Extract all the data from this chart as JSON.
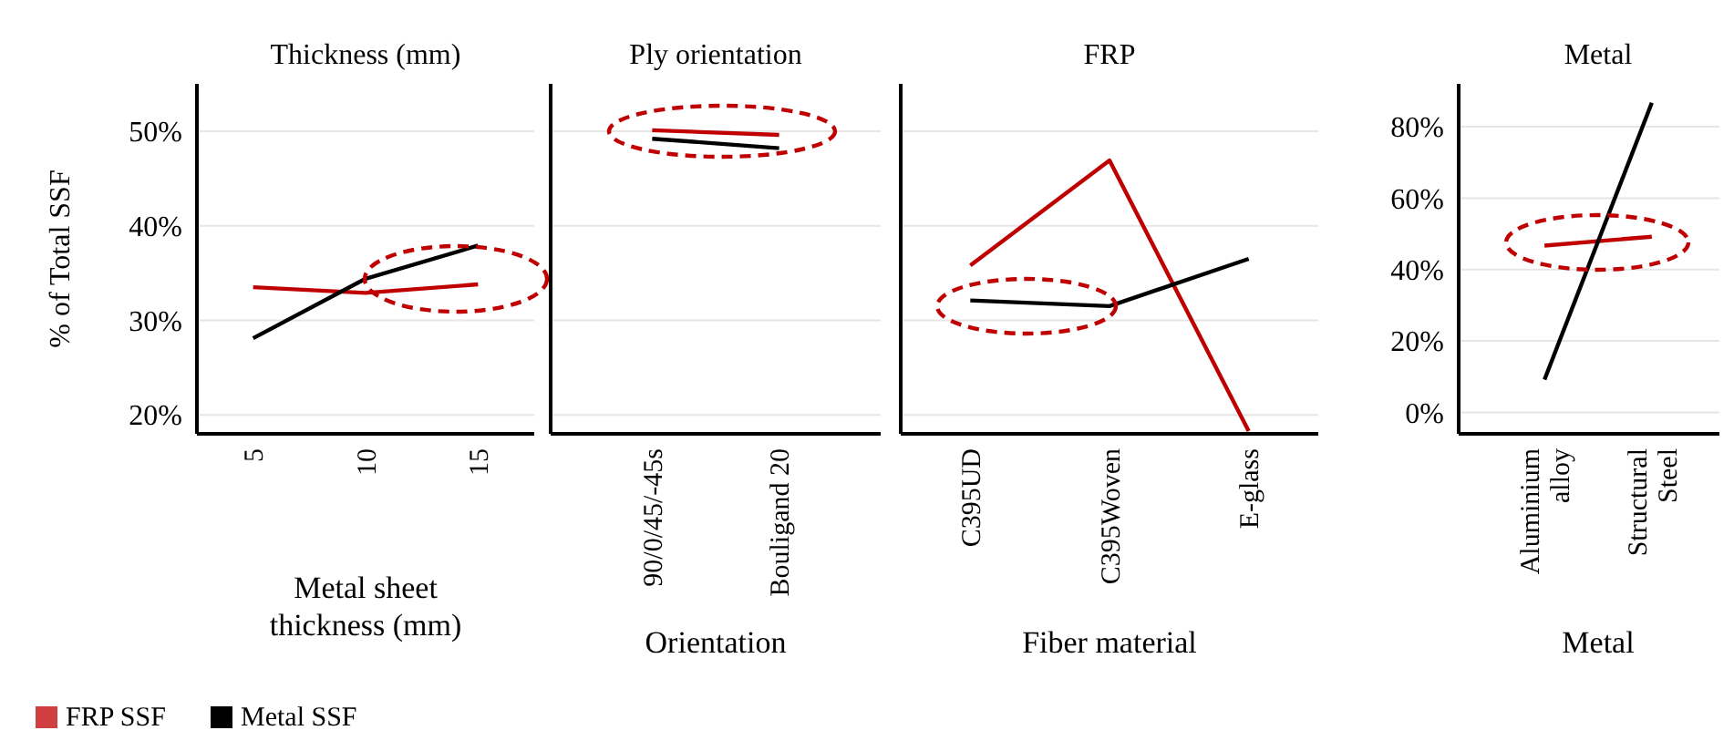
{
  "chart_data": [
    {
      "type": "line",
      "title": "Thickness (mm)",
      "xlabel": "Metal sheet thickness (mm)",
      "ylabel": "% of Total SSF",
      "categories": [
        "5",
        "10",
        "15"
      ],
      "ylim": [
        18,
        55
      ],
      "yticks": [
        {
          "value": 20,
          "label": "20%"
        },
        {
          "value": 30,
          "label": "30%"
        },
        {
          "value": 40,
          "label": "40%"
        },
        {
          "value": 50,
          "label": "50%"
        }
      ],
      "grid": "y",
      "legend": "bottom left",
      "marker": "none",
      "series": [
        {
          "name": "FRP SSF",
          "color": "#c00000",
          "values": [
            33.5,
            32.9,
            33.8
          ]
        },
        {
          "name": "Metal SSF",
          "color": "#000000",
          "values": [
            28.1,
            34.4,
            37.9
          ]
        }
      ]
    },
    {
      "type": "line",
      "title": "Ply orientation",
      "xlabel": "Orientation",
      "categories": [
        "90/0/45/-45s",
        "Bouligand 20"
      ],
      "ylim": [
        18,
        55
      ],
      "yticks": [
        20,
        30,
        40,
        50
      ],
      "grid": "y",
      "tick_labels": "x",
      "marker": "none",
      "series": [
        {
          "color": "#c00000",
          "values": [
            50.1,
            49.6
          ]
        },
        {
          "color": "#000000",
          "values": [
            49.2,
            48.2
          ]
        }
      ]
    },
    {
      "type": "line",
      "title": "FRP",
      "xlabel": "Fiber material",
      "categories": [
        "C395UD",
        "C395Woven",
        "E-glass"
      ],
      "ylim": [
        18,
        55
      ],
      "yticks": [
        20,
        30,
        40,
        50
      ],
      "grid": "y",
      "tick_labels": "x",
      "marker": "none",
      "series": [
        {
          "color": "#c00000",
          "values": [
            35.8,
            46.9,
            18.3
          ]
        },
        {
          "color": "#000000",
          "values": [
            32.1,
            31.5,
            36.5
          ]
        }
      ]
    },
    {
      "type": "line",
      "title": "Metal",
      "xlabel": "Metal",
      "categories": [
        "Aluminium alloy",
        "Structural Steel"
      ],
      "ylim": [
        -6,
        92
      ],
      "yticks": [
        {
          "value": 0,
          "label": "0%"
        },
        {
          "value": 20,
          "label": "20%"
        },
        {
          "value": 40,
          "label": "40%"
        },
        {
          "value": 60,
          "label": "60%"
        },
        {
          "value": 80,
          "label": "80%"
        }
      ],
      "grid": "y",
      "marker": "none",
      "series": [
        {
          "color": "#c00000",
          "values": [
            46.7,
            49.2
          ]
        },
        {
          "color": "#000000",
          "values": [
            9.2,
            86.7
          ]
        }
      ]
    }
  ]
}
